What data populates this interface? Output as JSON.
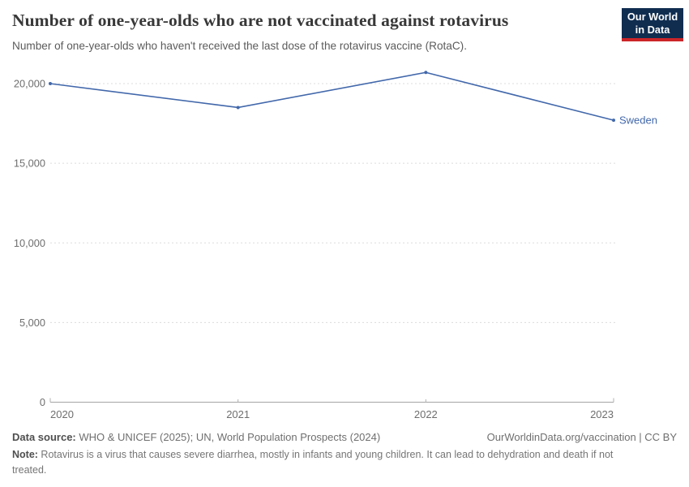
{
  "header": {
    "title": "Number of one-year-olds who are not vaccinated against rotavirus",
    "subtitle": "Number of one-year-olds who haven't received the last dose of the rotavirus vaccine (RotaC).",
    "logo": {
      "line1": "Our World",
      "line2": "in Data",
      "bg_color": "#102d50",
      "accent_color": "#cc2529"
    }
  },
  "chart_data": {
    "type": "line",
    "title": "Number of one-year-olds who are not vaccinated against rotavirus",
    "subtitle": "Number of one-year-olds who haven't received the last dose of the rotavirus vaccine (RotaC).",
    "x": [
      2020,
      2021,
      2022,
      2023
    ],
    "xtick_labels": [
      "2020",
      "2021",
      "2022",
      "2023"
    ],
    "series": [
      {
        "name": "Sweden",
        "values": [
          20000,
          18500,
          20700,
          17700
        ],
        "color": "#4268ab"
      }
    ],
    "xlabel": "",
    "ylabel": "",
    "ylim": [
      0,
      21000
    ],
    "yticks": [
      0,
      5000,
      10000,
      15000,
      20000
    ],
    "ytick_labels": [
      "0",
      "5,000",
      "10,000",
      "15,000",
      "20,000"
    ],
    "grid": "horizontal-dashed",
    "legend": "inline-end-label"
  },
  "footer": {
    "datasource_label": "Data source:",
    "datasource_text": " WHO & UNICEF (2025); UN, World Population Prospects (2024)",
    "link": "OurWorldinData.org/vaccination | CC BY",
    "note_label": "Note:",
    "note_text": " Rotavirus is a virus that causes severe diarrhea, mostly in infants and young children. It can lead to dehydration and death if not treated."
  }
}
